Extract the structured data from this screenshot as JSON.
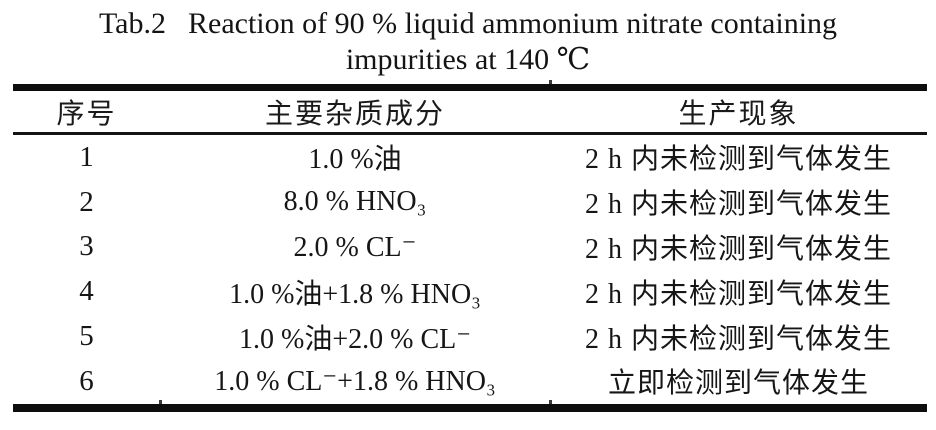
{
  "title": {
    "tab_label": "Tab.2",
    "line1": "Reaction of 90 % liquid ammonium nitrate containing",
    "line2": "impurities at 140 ℃"
  },
  "table": {
    "columns": [
      {
        "key": "no",
        "label": "序号"
      },
      {
        "key": "impurity",
        "label": "主要杂质成分"
      },
      {
        "key": "phenomenon",
        "label": "生产现象"
      }
    ],
    "rows": [
      {
        "no": "1",
        "impurity": "1.0 %油",
        "phenomenon": "2 h 内未检测到气体发生"
      },
      {
        "no": "2",
        "impurity": "8.0 % HNO₃",
        "phenomenon": "2 h 内未检测到气体发生"
      },
      {
        "no": "3",
        "impurity": "2.0 % CL⁻",
        "phenomenon": "2 h 内未检测到气体发生"
      },
      {
        "no": "4",
        "impurity": "1.0 %油+1.8 % HNO₃",
        "phenomenon": "2 h 内未检测到气体发生"
      },
      {
        "no": "5",
        "impurity": "1.0 %油+2.0 % CL⁻",
        "phenomenon": "2 h 内未检测到气体发生"
      },
      {
        "no": "6",
        "impurity": "1.0 % CL⁻+1.8 % HNO₃",
        "phenomenon": "立即检测到气体发生"
      }
    ]
  },
  "colors": {
    "background": "#ffffff",
    "text": "#1a1a1a",
    "rule": "#0d0d0d"
  }
}
